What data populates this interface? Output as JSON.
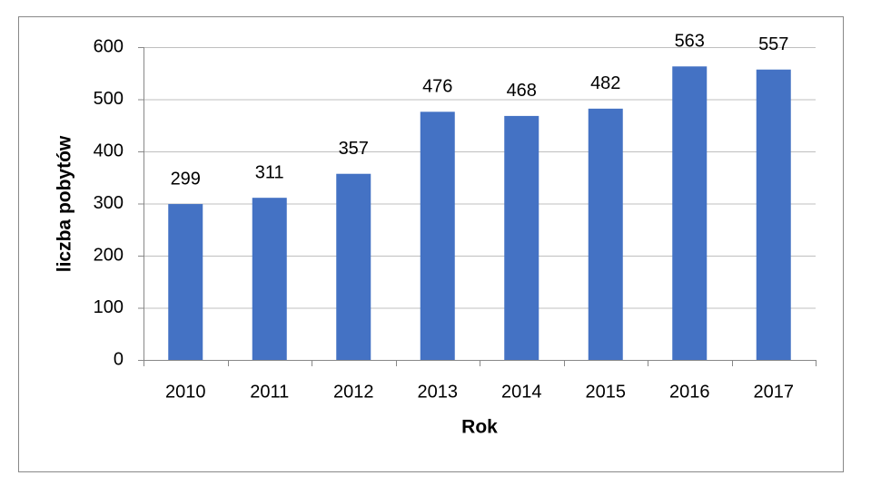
{
  "chart_data": {
    "type": "bar",
    "categories": [
      "2010",
      "2011",
      "2012",
      "2013",
      "2014",
      "2015",
      "2016",
      "2017"
    ],
    "values": [
      299,
      311,
      357,
      476,
      468,
      482,
      563,
      557
    ],
    "color": "#4472c4",
    "xlabel": "Rok",
    "ylabel": "liczba pobytów",
    "ylim": [
      0,
      600
    ],
    "yticks": [
      0,
      100,
      200,
      300,
      400,
      500,
      600
    ],
    "grid": true
  }
}
